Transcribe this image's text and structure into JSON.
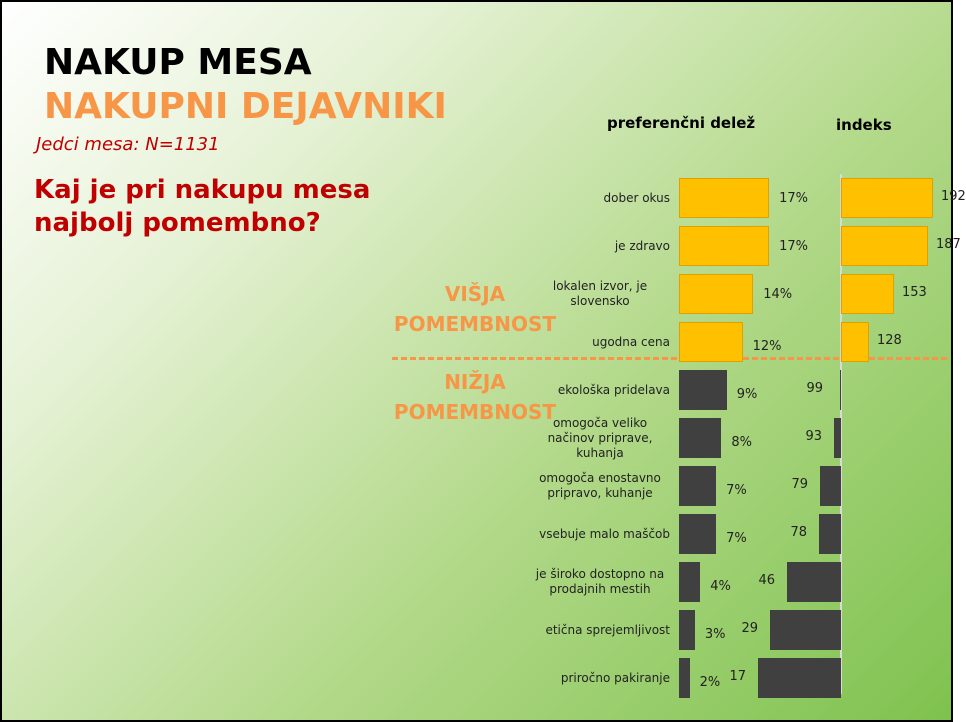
{
  "title": "NAKUP MESA",
  "subtitle": "NAKUPNI DEJAVNIKI",
  "sample": "Jedci mesa: N=1131",
  "question": "Kaj je pri nakupu mesa najbolj pomembno?",
  "group_labels": [
    "VIŠJA POMEMBNOST",
    "NIŽJA POMEMBNOST"
  ],
  "chart_data": [
    {
      "type": "bar",
      "orientation": "horizontal",
      "title": "preferenčni delež",
      "categories": [
        "dober okus",
        "je zdravo",
        "lokalen izvor, je slovensko",
        "ugodna cena",
        "ekološka pridelava",
        "omogoča veliko načinov priprave, kuhanja",
        "omogoča enostavno pripravo, kuhanje",
        "vsebuje malo maščob",
        "je široko dostopno na prodajnih mestih",
        "etična sprejemljivost",
        "priročno pakiranje"
      ],
      "values": [
        17,
        17,
        14,
        12,
        9,
        8,
        7,
        7,
        4,
        3,
        2
      ],
      "value_labels": [
        "17%",
        "17%",
        "14%",
        "12%",
        "9%",
        "8%",
        "7%",
        "7%",
        "4%",
        "3%",
        "2%"
      ],
      "colors": [
        "#ffc000",
        "#ffc000",
        "#ffc000",
        "#ffc000",
        "#404040",
        "#404040",
        "#404040",
        "#404040",
        "#404040",
        "#404040",
        "#404040"
      ],
      "xlim": [
        0,
        20
      ]
    },
    {
      "type": "bar",
      "orientation": "horizontal",
      "title": "indeks",
      "values": [
        192,
        187,
        153,
        128,
        99,
        93,
        79,
        78,
        46,
        29,
        17
      ],
      "colors": [
        "#ffc000",
        "#ffc000",
        "#ffc000",
        "#ffc000",
        "#404040",
        "#404040",
        "#404040",
        "#404040",
        "#404040",
        "#404040",
        "#404040"
      ],
      "xlim": [
        0,
        200
      ],
      "reference_line": 100
    }
  ]
}
